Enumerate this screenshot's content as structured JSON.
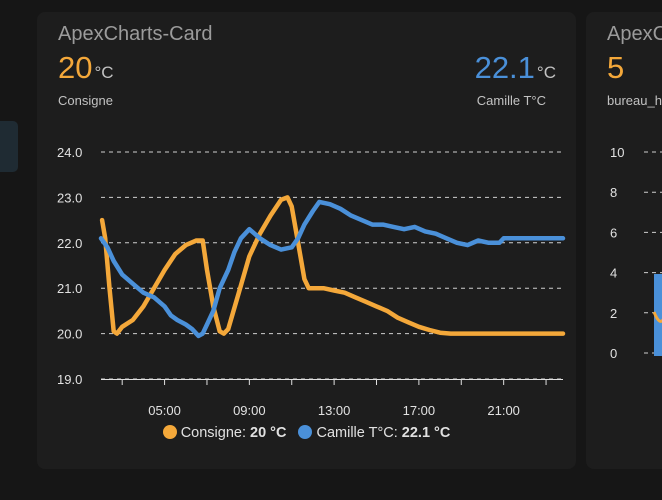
{
  "colors": {
    "consigne": "#f4a83a",
    "camille": "#4a90d9",
    "grid": "#cfcfcf",
    "background": "#161616",
    "card": "#1d1d1d"
  },
  "card1": {
    "title": "ApexCharts-Card",
    "consigne": {
      "value": "20",
      "unit": "°C",
      "label": "Consigne"
    },
    "camille": {
      "value": "22.1",
      "unit": "°C",
      "label": "Camille T°C"
    },
    "legend": [
      {
        "name": "Consigne:",
        "value": "20 °C"
      },
      {
        "name": "Camille T°C:",
        "value": "22.1 °C"
      }
    ]
  },
  "card2": {
    "title": "ApexCharts-Card",
    "value": "5",
    "label": "bureau_h",
    "y_ticks": [
      "10",
      "8",
      "6",
      "4",
      "2",
      "0"
    ]
  },
  "chart_data": {
    "type": "line",
    "title": "",
    "xlabel": "",
    "ylabel": "",
    "ylim": [
      19.0,
      24.0
    ],
    "yticks": [
      24.0,
      23.0,
      22.0,
      21.0,
      20.0,
      19.0
    ],
    "xlim": [
      2.0,
      23.8
    ],
    "xticks": [
      5,
      9,
      13,
      17,
      21
    ],
    "xtick_labels": [
      "05:00",
      "09:00",
      "13:00",
      "17:00",
      "21:00"
    ],
    "grid": true,
    "legend_position": "bottom",
    "series": [
      {
        "name": "Consigne",
        "points": [
          [
            2.05,
            22.5
          ],
          [
            2.2,
            22.1
          ],
          [
            2.4,
            21.0
          ],
          [
            2.6,
            20.05
          ],
          [
            2.75,
            20.0
          ],
          [
            3.0,
            20.15
          ],
          [
            3.5,
            20.3
          ],
          [
            4.0,
            20.6
          ],
          [
            4.5,
            21.0
          ],
          [
            5.0,
            21.4
          ],
          [
            5.5,
            21.75
          ],
          [
            6.0,
            21.95
          ],
          [
            6.5,
            22.05
          ],
          [
            6.8,
            22.05
          ],
          [
            7.0,
            21.4
          ],
          [
            7.3,
            20.6
          ],
          [
            7.6,
            20.05
          ],
          [
            7.8,
            20.0
          ],
          [
            8.0,
            20.1
          ],
          [
            8.5,
            20.9
          ],
          [
            9.0,
            21.7
          ],
          [
            9.5,
            22.2
          ],
          [
            10.0,
            22.6
          ],
          [
            10.5,
            22.95
          ],
          [
            10.8,
            23.0
          ],
          [
            11.0,
            22.8
          ],
          [
            11.3,
            22.0
          ],
          [
            11.6,
            21.2
          ],
          [
            11.8,
            21.0
          ],
          [
            12.5,
            21.0
          ],
          [
            13.0,
            20.95
          ],
          [
            13.5,
            20.9
          ],
          [
            14.0,
            20.8
          ],
          [
            14.5,
            20.7
          ],
          [
            15.0,
            20.6
          ],
          [
            15.5,
            20.5
          ],
          [
            16.0,
            20.35
          ],
          [
            16.5,
            20.25
          ],
          [
            17.0,
            20.15
          ],
          [
            17.5,
            20.08
          ],
          [
            18.0,
            20.02
          ],
          [
            18.5,
            20.0
          ],
          [
            23.8,
            20.0
          ]
        ]
      },
      {
        "name": "Camille T°C",
        "points": [
          [
            2.0,
            22.1
          ],
          [
            2.3,
            21.9
          ],
          [
            2.6,
            21.6
          ],
          [
            3.0,
            21.3
          ],
          [
            3.5,
            21.1
          ],
          [
            4.0,
            20.9
          ],
          [
            4.5,
            20.8
          ],
          [
            5.0,
            20.6
          ],
          [
            5.3,
            20.4
          ],
          [
            5.6,
            20.3
          ],
          [
            6.0,
            20.2
          ],
          [
            6.3,
            20.1
          ],
          [
            6.6,
            19.95
          ],
          [
            6.8,
            20.0
          ],
          [
            7.0,
            20.2
          ],
          [
            7.3,
            20.5
          ],
          [
            7.6,
            21.0
          ],
          [
            8.0,
            21.4
          ],
          [
            8.3,
            21.8
          ],
          [
            8.6,
            22.1
          ],
          [
            9.0,
            22.3
          ],
          [
            9.5,
            22.1
          ],
          [
            10.0,
            21.95
          ],
          [
            10.5,
            21.85
          ],
          [
            11.0,
            21.9
          ],
          [
            11.3,
            22.1
          ],
          [
            11.6,
            22.4
          ],
          [
            12.0,
            22.7
          ],
          [
            12.3,
            22.9
          ],
          [
            12.8,
            22.85
          ],
          [
            13.3,
            22.75
          ],
          [
            13.8,
            22.6
          ],
          [
            14.3,
            22.5
          ],
          [
            14.8,
            22.4
          ],
          [
            15.3,
            22.4
          ],
          [
            15.8,
            22.35
          ],
          [
            16.3,
            22.3
          ],
          [
            16.8,
            22.35
          ],
          [
            17.3,
            22.25
          ],
          [
            17.8,
            22.2
          ],
          [
            18.3,
            22.1
          ],
          [
            18.8,
            22.0
          ],
          [
            19.3,
            21.95
          ],
          [
            19.8,
            22.05
          ],
          [
            20.3,
            22.0
          ],
          [
            20.8,
            22.0
          ],
          [
            21.0,
            22.1
          ],
          [
            23.8,
            22.1
          ]
        ]
      }
    ]
  }
}
